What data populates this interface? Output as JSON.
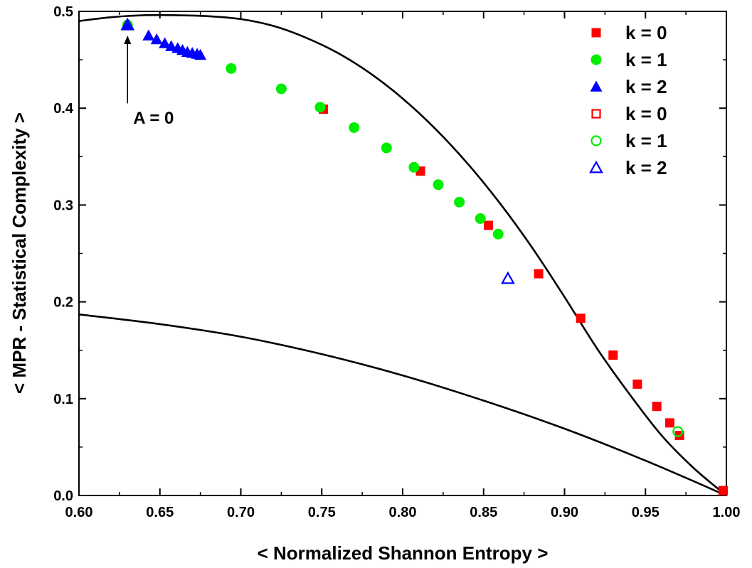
{
  "chart_data": {
    "type": "scatter",
    "title": "",
    "xlabel": "< Normalized Shannon Entropy >",
    "ylabel": "< MPR - Statistical Complexity >",
    "xlim": [
      0.6,
      1.0
    ],
    "ylim": [
      0.0,
      0.5
    ],
    "x_ticks": [
      "0.60",
      "0.65",
      "0.70",
      "0.75",
      "0.80",
      "0.85",
      "0.90",
      "0.95",
      "1.00"
    ],
    "y_ticks": [
      "0.0",
      "0.1",
      "0.2",
      "0.3",
      "0.4",
      "0.5"
    ],
    "grid": false,
    "legend_position": "top-right",
    "series": [
      {
        "name": "k = 0",
        "marker": "square",
        "filled": true,
        "color": "#ff0000",
        "x": [
          0.751,
          0.811,
          0.853,
          0.884,
          0.91,
          0.93,
          0.945,
          0.957,
          0.965,
          0.971,
          0.998
        ],
        "y": [
          0.399,
          0.335,
          0.279,
          0.229,
          0.183,
          0.145,
          0.115,
          0.092,
          0.075,
          0.062,
          0.005
        ]
      },
      {
        "name": "k = 1",
        "marker": "circle",
        "filled": true,
        "color": "#00ee00",
        "x": [
          0.63,
          0.694,
          0.725,
          0.749,
          0.77,
          0.79,
          0.807,
          0.822,
          0.835,
          0.848,
          0.859
        ],
        "y": [
          0.486,
          0.441,
          0.42,
          0.401,
          0.38,
          0.359,
          0.339,
          0.321,
          0.303,
          0.286,
          0.27
        ]
      },
      {
        "name": "k = 2",
        "marker": "triangle",
        "filled": true,
        "color": "#0000ff",
        "x": [
          0.63,
          0.643,
          0.648,
          0.653,
          0.657,
          0.661,
          0.664,
          0.667,
          0.67,
          0.673,
          0.675
        ],
        "y": [
          0.486,
          0.475,
          0.471,
          0.467,
          0.464,
          0.462,
          0.46,
          0.458,
          0.457,
          0.456,
          0.455
        ]
      },
      {
        "name": "k = 0",
        "marker": "square",
        "filled": false,
        "color": "#ff0000",
        "x": [
          0.998
        ],
        "y": [
          0.005
        ]
      },
      {
        "name": "k = 1",
        "marker": "circle",
        "filled": false,
        "color": "#00ee00",
        "x": [
          0.97
        ],
        "y": [
          0.066
        ]
      },
      {
        "name": "k = 2",
        "marker": "triangle",
        "filled": false,
        "color": "#0000ff",
        "x": [
          0.63,
          0.865
        ],
        "y": [
          0.486,
          0.224
        ]
      }
    ],
    "curves": [
      {
        "color": "#000000",
        "x": [
          0.6,
          0.62,
          0.64,
          0.66,
          0.68,
          0.7,
          0.72,
          0.74,
          0.76,
          0.78,
          0.8,
          0.82,
          0.84,
          0.86,
          0.88,
          0.9,
          0.92,
          0.94,
          0.96,
          0.98,
          1.0
        ],
        "y": [
          0.49,
          0.494,
          0.496,
          0.496,
          0.495,
          0.492,
          0.485,
          0.473,
          0.457,
          0.436,
          0.41,
          0.379,
          0.343,
          0.302,
          0.256,
          0.205,
          0.152,
          0.105,
          0.062,
          0.028,
          0.0
        ]
      },
      {
        "color": "#000000",
        "x": [
          0.6,
          0.65,
          0.7,
          0.75,
          0.8,
          0.85,
          0.9,
          0.95,
          1.0
        ],
        "y": [
          0.187,
          0.177,
          0.164,
          0.146,
          0.124,
          0.098,
          0.069,
          0.036,
          0.0
        ]
      }
    ],
    "annotations": [
      {
        "text": "A = 0",
        "x": 0.63,
        "y": 0.387,
        "arrow_to": [
          0.63,
          0.475
        ],
        "arrow_from": [
          0.63,
          0.405
        ]
      }
    ]
  }
}
